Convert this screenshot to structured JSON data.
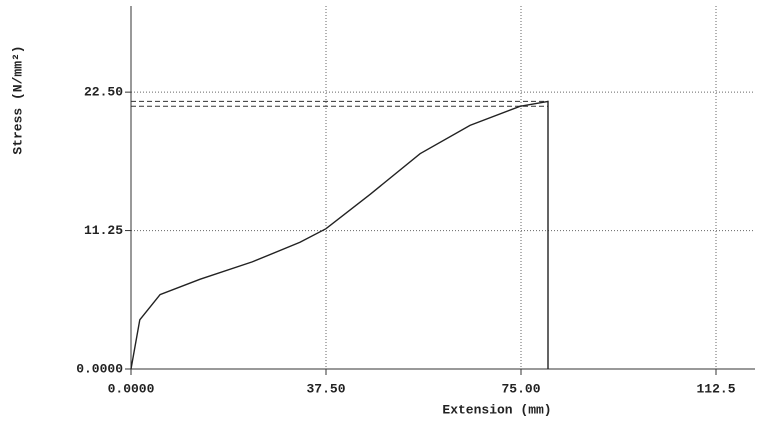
{
  "chart_data": {
    "type": "line",
    "x_label": "Extension (mm)",
    "y_label": "Stress (N/mm²)",
    "xlim": [
      0,
      120
    ],
    "ylim": [
      0,
      29.5
    ],
    "xticks": [
      {
        "value": 0,
        "label": "0.0000"
      },
      {
        "value": 37.5,
        "label": "37.50"
      },
      {
        "value": 75,
        "label": "75.00"
      },
      {
        "value": 112.5,
        "label": "112.5"
      }
    ],
    "yticks": [
      {
        "value": 0,
        "label": "0.0000"
      },
      {
        "value": 11.25,
        "label": "11.25"
      },
      {
        "value": 22.5,
        "label": "22.50"
      }
    ],
    "grid": true,
    "series": [
      {
        "color": "#222222",
        "x": [
          0,
          1.7,
          5.6,
          13.3,
          23.3,
          32.5,
          37.5,
          46,
          55.6,
          65.2,
          74.8,
          80.2,
          80.2
        ],
        "values": [
          0,
          4.0,
          6.05,
          7.3,
          8.7,
          10.3,
          11.4,
          14.2,
          17.5,
          19.8,
          21.35,
          21.75,
          0
        ]
      }
    ],
    "hlines": [
      21.75,
      21.35
    ]
  }
}
